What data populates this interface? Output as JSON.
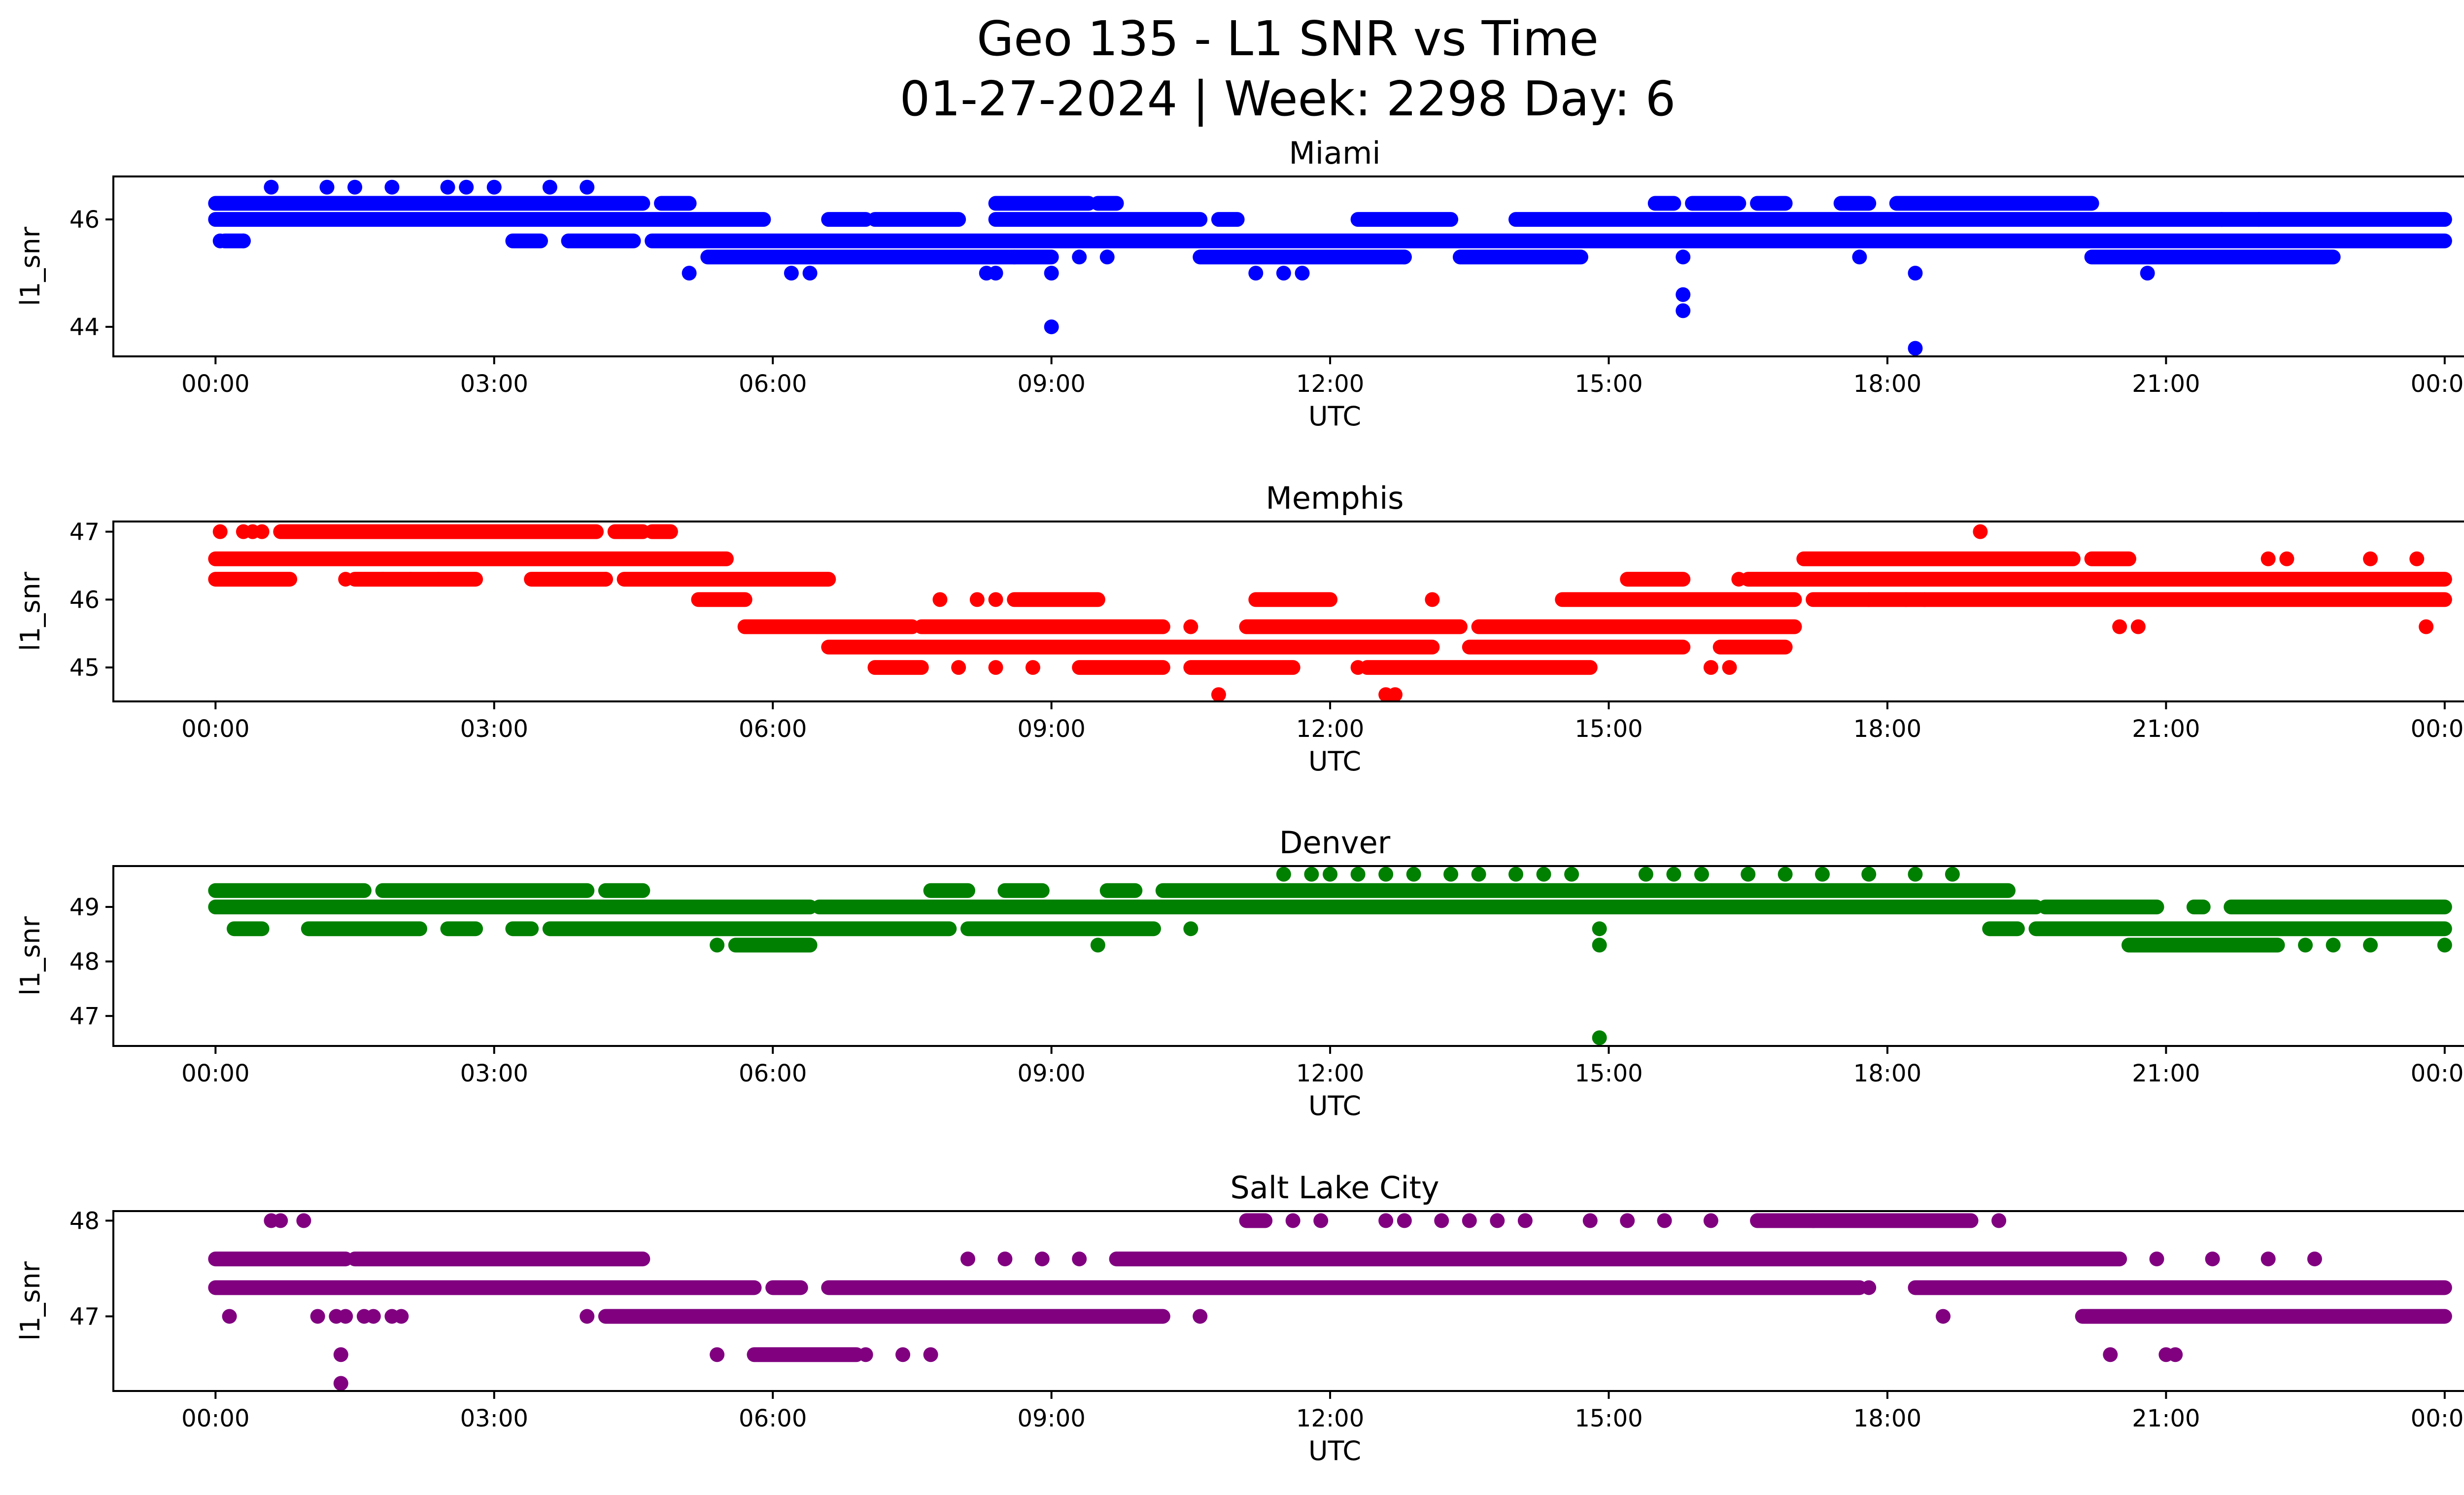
{
  "figure": {
    "title_line1": "Geo 135 - L1 SNR vs Time",
    "title_line2": "01-27-2024 | Week: 2298 Day: 6"
  },
  "chart_data": [
    {
      "type": "scatter",
      "title": "Miami",
      "xlabel": "UTC",
      "ylabel": "l1_snr",
      "color": "#0000ff",
      "x_unit": "hours",
      "xlim": [
        -1.1,
        25.2
      ],
      "ylim": [
        43.45,
        46.8
      ],
      "xticks": [
        0,
        3,
        6,
        9,
        12,
        15,
        18,
        21,
        24
      ],
      "xtick_labels": [
        "00:00",
        "03:00",
        "06:00",
        "09:00",
        "12:00",
        "15:00",
        "18:00",
        "21:00",
        "00:00"
      ],
      "yticks": [
        44,
        46
      ],
      "ytick_labels": [
        "44",
        "46"
      ],
      "bands": [
        {
          "y": 46.3,
          "ranges": [
            [
              0,
              4.6
            ],
            [
              4.8,
              5.1
            ],
            [
              8.4,
              9.4
            ],
            [
              9.5,
              9.7
            ],
            [
              15.5,
              15.7
            ],
            [
              15.9,
              16.4
            ],
            [
              16.6,
              16.9
            ],
            [
              17.5,
              17.8
            ],
            [
              18.1,
              20.2
            ]
          ]
        },
        {
          "y": 46.0,
          "ranges": [
            [
              0,
              5.9
            ],
            [
              6.6,
              7.0
            ],
            [
              7.1,
              8.0
            ],
            [
              8.4,
              10.6
            ],
            [
              10.8,
              11.0
            ],
            [
              12.3,
              13.3
            ],
            [
              14.0,
              24.0
            ]
          ]
        },
        {
          "y": 45.6,
          "ranges": [
            [
              0.1,
              0.3
            ],
            [
              3.2,
              3.5
            ],
            [
              3.8,
              4.5
            ],
            [
              4.7,
              24.0
            ]
          ]
        },
        {
          "y": 45.3,
          "ranges": [
            [
              5.3,
              9.0
            ],
            [
              10.6,
              12.8
            ],
            [
              13.4,
              14.7
            ],
            [
              20.2,
              22.8
            ]
          ]
        }
      ],
      "points": [
        [
          0.05,
          45.6
        ],
        [
          0.3,
          45.6
        ],
        [
          0.6,
          46.6
        ],
        [
          1.2,
          46.6
        ],
        [
          1.5,
          46.6
        ],
        [
          1.9,
          46.6
        ],
        [
          2.5,
          46.6
        ],
        [
          2.7,
          46.6
        ],
        [
          3.0,
          46.6
        ],
        [
          3.6,
          46.6
        ],
        [
          4.0,
          46.6
        ],
        [
          5.1,
          45.0
        ],
        [
          6.2,
          45.0
        ],
        [
          6.4,
          45.0
        ],
        [
          8.3,
          45.0
        ],
        [
          8.4,
          45.0
        ],
        [
          8.6,
          45.3
        ],
        [
          9.0,
          44.0
        ],
        [
          9.0,
          45.0
        ],
        [
          9.3,
          45.3
        ],
        [
          9.6,
          45.3
        ],
        [
          11.2,
          45.0
        ],
        [
          11.5,
          45.0
        ],
        [
          11.7,
          45.0
        ],
        [
          12.8,
          45.3
        ],
        [
          15.8,
          45.3
        ],
        [
          15.8,
          44.6
        ],
        [
          15.8,
          44.3
        ],
        [
          17.7,
          45.3
        ],
        [
          18.3,
          45.0
        ],
        [
          18.3,
          43.6
        ],
        [
          20.1,
          46.3
        ],
        [
          20.8,
          45.0
        ],
        [
          21.6,
          46.0
        ],
        [
          22.0,
          46.0
        ]
      ]
    },
    {
      "type": "scatter",
      "title": "Memphis",
      "xlabel": "UTC",
      "ylabel": "l1_snr",
      "color": "#ff0000",
      "x_unit": "hours",
      "xlim": [
        -1.1,
        25.2
      ],
      "ylim": [
        44.5,
        47.15
      ],
      "xticks": [
        0,
        3,
        6,
        9,
        12,
        15,
        18,
        21,
        24
      ],
      "xtick_labels": [
        "00:00",
        "03:00",
        "06:00",
        "09:00",
        "12:00",
        "15:00",
        "18:00",
        "21:00",
        "00:00"
      ],
      "yticks": [
        45,
        46,
        47
      ],
      "ytick_labels": [
        "45",
        "46",
        "47"
      ],
      "bands": [
        {
          "y": 47.0,
          "ranges": [
            [
              0.7,
              4.1
            ],
            [
              4.3,
              4.6
            ],
            [
              4.7,
              4.9
            ]
          ]
        },
        {
          "y": 46.6,
          "ranges": [
            [
              0,
              5.5
            ],
            [
              17.1,
              20.0
            ],
            [
              20.2,
              20.6
            ]
          ]
        },
        {
          "y": 46.3,
          "ranges": [
            [
              0,
              0.8
            ],
            [
              1.5,
              2.8
            ],
            [
              3.4,
              4.2
            ],
            [
              4.4,
              6.6
            ],
            [
              15.2,
              15.8
            ],
            [
              16.5,
              24.0
            ]
          ]
        },
        {
          "y": 46.0,
          "ranges": [
            [
              5.2,
              5.7
            ],
            [
              8.6,
              9.5
            ],
            [
              11.2,
              12.0
            ],
            [
              14.5,
              17.0
            ],
            [
              17.2,
              24.0
            ]
          ]
        },
        {
          "y": 45.6,
          "ranges": [
            [
              5.7,
              7.5
            ],
            [
              7.6,
              10.2
            ],
            [
              11.1,
              13.4
            ],
            [
              13.6,
              17.0
            ]
          ]
        },
        {
          "y": 45.3,
          "ranges": [
            [
              6.6,
              13.1
            ],
            [
              13.5,
              15.8
            ],
            [
              16.2,
              16.9
            ]
          ]
        },
        {
          "y": 45.0,
          "ranges": [
            [
              7.1,
              7.6
            ],
            [
              9.3,
              10.2
            ],
            [
              10.5,
              11.6
            ],
            [
              12.4,
              14.8
            ]
          ]
        }
      ],
      "points": [
        [
          0.05,
          47.0
        ],
        [
          0.3,
          47.0
        ],
        [
          0.4,
          47.0
        ],
        [
          0.5,
          47.0
        ],
        [
          1.4,
          46.3
        ],
        [
          1.8,
          46.3
        ],
        [
          2.1,
          46.3
        ],
        [
          2.4,
          46.3
        ],
        [
          4.2,
          46.3
        ],
        [
          7.8,
          46.0
        ],
        [
          8.2,
          46.0
        ],
        [
          8.4,
          46.0
        ],
        [
          8.0,
          45.0
        ],
        [
          8.4,
          45.0
        ],
        [
          8.8,
          45.0
        ],
        [
          10.1,
          45.6
        ],
        [
          10.5,
          45.6
        ],
        [
          10.8,
          44.6
        ],
        [
          12.3,
          45.0
        ],
        [
          12.6,
          44.6
        ],
        [
          12.7,
          44.6
        ],
        [
          13.1,
          46.0
        ],
        [
          16.1,
          45.0
        ],
        [
          16.3,
          45.0
        ],
        [
          16.4,
          46.3
        ],
        [
          17.8,
          46.0
        ],
        [
          18.2,
          46.0
        ],
        [
          18.4,
          46.0
        ],
        [
          19.0,
          47.0
        ],
        [
          20.5,
          45.6
        ],
        [
          20.7,
          45.6
        ],
        [
          22.1,
          46.6
        ],
        [
          22.3,
          46.6
        ],
        [
          23.2,
          46.6
        ],
        [
          23.7,
          46.6
        ],
        [
          23.8,
          45.6
        ]
      ]
    },
    {
      "type": "scatter",
      "title": "Denver",
      "xlabel": "UTC",
      "ylabel": "l1_snr",
      "color": "#008000",
      "x_unit": "hours",
      "xlim": [
        -1.1,
        25.2
      ],
      "ylim": [
        46.45,
        49.75
      ],
      "xticks": [
        0,
        3,
        6,
        9,
        12,
        15,
        18,
        21,
        24
      ],
      "xtick_labels": [
        "00:00",
        "03:00",
        "06:00",
        "09:00",
        "12:00",
        "15:00",
        "18:00",
        "21:00",
        "00:00"
      ],
      "yticks": [
        47,
        48,
        49
      ],
      "ytick_labels": [
        "47",
        "48",
        "49"
      ],
      "bands": [
        {
          "y": 49.3,
          "ranges": [
            [
              0,
              1.6
            ],
            [
              1.8,
              4.0
            ],
            [
              4.2,
              4.6
            ],
            [
              7.7,
              8.1
            ],
            [
              8.5,
              8.9
            ],
            [
              9.6,
              9.9
            ],
            [
              10.2,
              19.3
            ]
          ]
        },
        {
          "y": 49.0,
          "ranges": [
            [
              0,
              6.4
            ],
            [
              6.5,
              19.6
            ],
            [
              19.7,
              20.9
            ],
            [
              21.3,
              21.4
            ],
            [
              21.7,
              24.0
            ]
          ]
        },
        {
          "y": 48.6,
          "ranges": [
            [
              0.2,
              0.5
            ],
            [
              1.0,
              2.2
            ],
            [
              2.5,
              2.8
            ],
            [
              3.2,
              3.4
            ],
            [
              3.6,
              7.9
            ],
            [
              8.1,
              10.1
            ],
            [
              19.1,
              19.4
            ],
            [
              19.6,
              24.0
            ]
          ]
        },
        {
          "y": 48.3,
          "ranges": [
            [
              5.6,
              6.4
            ],
            [
              20.6,
              22.2
            ]
          ]
        }
      ],
      "points": [
        [
          5.4,
          48.3
        ],
        [
          9.5,
          48.3
        ],
        [
          10.5,
          48.6
        ],
        [
          11.5,
          49.6
        ],
        [
          11.8,
          49.6
        ],
        [
          12.0,
          49.6
        ],
        [
          12.3,
          49.6
        ],
        [
          12.6,
          49.6
        ],
        [
          12.9,
          49.6
        ],
        [
          13.3,
          49.6
        ],
        [
          13.6,
          49.6
        ],
        [
          14.0,
          49.6
        ],
        [
          14.3,
          49.6
        ],
        [
          14.6,
          49.6
        ],
        [
          15.4,
          49.6
        ],
        [
          15.7,
          49.6
        ],
        [
          16.0,
          49.6
        ],
        [
          16.5,
          49.6
        ],
        [
          16.9,
          49.6
        ],
        [
          17.3,
          49.6
        ],
        [
          17.8,
          49.6
        ],
        [
          18.3,
          49.6
        ],
        [
          18.7,
          49.6
        ],
        [
          14.9,
          48.6
        ],
        [
          14.9,
          48.3
        ],
        [
          14.9,
          46.6
        ],
        [
          22.5,
          48.3
        ],
        [
          22.8,
          48.3
        ],
        [
          23.2,
          48.3
        ],
        [
          24.0,
          48.3
        ]
      ]
    },
    {
      "type": "scatter",
      "title": "Salt Lake City",
      "xlabel": "UTC",
      "ylabel": "l1_snr",
      "color": "#800080",
      "x_unit": "hours",
      "xlim": [
        -1.1,
        25.2
      ],
      "ylim": [
        46.22,
        48.1
      ],
      "xticks": [
        0,
        3,
        6,
        9,
        12,
        15,
        18,
        21,
        24
      ],
      "xtick_labels": [
        "00:00",
        "03:00",
        "06:00",
        "09:00",
        "12:00",
        "15:00",
        "18:00",
        "21:00",
        "00:00"
      ],
      "yticks": [
        47,
        48
      ],
      "ytick_labels": [
        "47",
        "48"
      ],
      "bands": [
        {
          "y": 48.0,
          "ranges": [
            [
              11.1,
              11.3
            ],
            [
              16.6,
              18.9
            ]
          ]
        },
        {
          "y": 47.6,
          "ranges": [
            [
              0,
              1.4
            ],
            [
              1.5,
              4.6
            ],
            [
              9.7,
              20.5
            ]
          ]
        },
        {
          "y": 47.3,
          "ranges": [
            [
              0,
              5.8
            ],
            [
              6.0,
              6.3
            ],
            [
              6.6,
              17.7
            ],
            [
              18.3,
              24.0
            ]
          ]
        },
        {
          "y": 47.0,
          "ranges": [
            [
              4.2,
              10.2
            ],
            [
              20.1,
              24.0
            ]
          ]
        },
        {
          "y": 46.6,
          "ranges": [
            [
              5.8,
              6.9
            ]
          ]
        }
      ],
      "points": [
        [
          0.6,
          48.0
        ],
        [
          0.7,
          48.0
        ],
        [
          0.95,
          48.0
        ],
        [
          0.15,
          47.0
        ],
        [
          1.1,
          47.0
        ],
        [
          1.3,
          47.0
        ],
        [
          1.4,
          47.0
        ],
        [
          1.6,
          47.0
        ],
        [
          1.7,
          47.0
        ],
        [
          1.9,
          47.0
        ],
        [
          2.0,
          47.0
        ],
        [
          1.35,
          46.6
        ],
        [
          1.35,
          46.3
        ],
        [
          4.0,
          47.0
        ],
        [
          5.4,
          46.6
        ],
        [
          7.0,
          46.6
        ],
        [
          7.4,
          46.6
        ],
        [
          7.7,
          46.6
        ],
        [
          8.1,
          47.6
        ],
        [
          8.5,
          47.6
        ],
        [
          8.9,
          47.6
        ],
        [
          9.3,
          47.6
        ],
        [
          10.6,
          47.0
        ],
        [
          11.6,
          48.0
        ],
        [
          11.9,
          48.0
        ],
        [
          12.6,
          48.0
        ],
        [
          12.8,
          48.0
        ],
        [
          13.2,
          48.0
        ],
        [
          13.5,
          48.0
        ],
        [
          13.8,
          48.0
        ],
        [
          14.1,
          48.0
        ],
        [
          14.8,
          48.0
        ],
        [
          15.2,
          48.0
        ],
        [
          15.6,
          48.0
        ],
        [
          16.1,
          48.0
        ],
        [
          17.8,
          47.3
        ],
        [
          17.2,
          48.0
        ],
        [
          18.6,
          47.0
        ],
        [
          19.2,
          48.0
        ],
        [
          20.4,
          46.6
        ],
        [
          21.0,
          46.6
        ],
        [
          21.1,
          46.6
        ],
        [
          20.9,
          47.6
        ],
        [
          21.5,
          47.6
        ],
        [
          22.1,
          47.6
        ],
        [
          22.6,
          47.6
        ]
      ]
    }
  ]
}
